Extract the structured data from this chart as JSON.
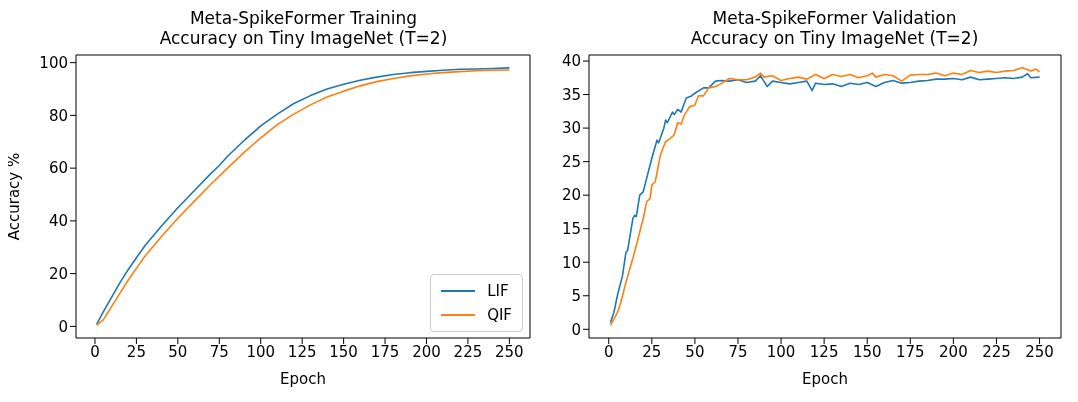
{
  "chart_data": [
    {
      "type": "line",
      "title": "Meta-SpikeFormer Training\nAccuracy on Tiny ImageNet (T=2)",
      "xlabel": "Epoch",
      "ylabel": "Accuracy %",
      "xlim": [
        -11.45,
        262.45
      ],
      "ylim": [
        -4.4,
        102.9
      ],
      "xticks": [
        0,
        25,
        50,
        75,
        100,
        125,
        150,
        175,
        200,
        225,
        250
      ],
      "yticks": [
        0,
        20,
        40,
        60,
        80,
        100
      ],
      "grid": false,
      "legend": "bottom right",
      "marker": "none",
      "line_style": "solid",
      "series": [
        {
          "name": "LIF",
          "color": "#1f77b4",
          "x": [
            1,
            5,
            10,
            15,
            20,
            25,
            30,
            40,
            50,
            60,
            70,
            75,
            80,
            90,
            100,
            110,
            120,
            130,
            140,
            150,
            160,
            170,
            180,
            190,
            200,
            210,
            220,
            230,
            240,
            250
          ],
          "values": [
            0.8,
            5.5,
            11,
            16.5,
            21.5,
            26,
            30.5,
            38,
            45,
            51.5,
            58,
            61,
            64.5,
            70.5,
            76,
            80.5,
            84.5,
            87.5,
            90,
            91.8,
            93.3,
            94.5,
            95.5,
            96.2,
            96.7,
            97.1,
            97.5,
            97.6,
            97.8,
            98
          ]
        },
        {
          "name": "QIF",
          "color": "#ff7f0e",
          "x": [
            1,
            5,
            10,
            15,
            20,
            25,
            30,
            40,
            50,
            60,
            70,
            80,
            90,
            100,
            110,
            120,
            130,
            140,
            150,
            160,
            170,
            180,
            190,
            200,
            210,
            220,
            230,
            240,
            250
          ],
          "values": [
            0.5,
            2.5,
            7.5,
            12.5,
            17.5,
            22,
            26.5,
            34,
            41,
            47.5,
            54,
            60,
            66,
            71.5,
            76.5,
            80.5,
            84,
            87,
            89.2,
            91.2,
            92.8,
            94,
            95,
            95.7,
            96.2,
            96.6,
            96.9,
            97.1,
            97.2
          ]
        }
      ]
    },
    {
      "type": "line",
      "title": "Meta-SpikeFormer Validation\nAccuracy on Tiny ImageNet (T=2)",
      "xlabel": "Epoch",
      "xlim": [
        -11.45,
        262.45
      ],
      "ylim": [
        -1.3,
        40.9
      ],
      "xticks": [
        0,
        25,
        50,
        75,
        100,
        125,
        150,
        175,
        200,
        225,
        250
      ],
      "yticks": [
        0,
        5,
        10,
        15,
        20,
        25,
        30,
        35,
        40
      ],
      "grid": false,
      "marker": "none",
      "line_style": "solid",
      "series": [
        {
          "color": "#1f77b4",
          "x": [
            1,
            3,
            5,
            8,
            10,
            11,
            14,
            15,
            16,
            18,
            20,
            22,
            25,
            28,
            29,
            32,
            33,
            34,
            37,
            38,
            40,
            42,
            45,
            48,
            50,
            55,
            58,
            62,
            65,
            70,
            75,
            80,
            85,
            88,
            90,
            92,
            95,
            100,
            105,
            110,
            115,
            118,
            120,
            125,
            130,
            135,
            140,
            145,
            150,
            155,
            160,
            165,
            170,
            175,
            180,
            185,
            190,
            195,
            200,
            205,
            210,
            215,
            220,
            225,
            230,
            235,
            240,
            243,
            245,
            250
          ],
          "values": [
            1,
            2.5,
            5,
            8,
            11.5,
            11.8,
            16.5,
            17,
            16.8,
            20,
            20.5,
            22.5,
            25.5,
            28.2,
            27.8,
            30,
            31.2,
            30.8,
            32.4,
            32,
            32.8,
            32.4,
            34.5,
            34.8,
            35.2,
            36,
            36,
            37,
            37.1,
            37,
            37.2,
            36.8,
            37,
            37.8,
            37,
            36.2,
            37,
            36.8,
            36.6,
            36.8,
            37,
            35.6,
            36.7,
            36.5,
            36.6,
            36.2,
            36.7,
            36.5,
            36.8,
            36.2,
            36.8,
            37.1,
            36.7,
            36.8,
            37,
            37.1,
            37.3,
            37.3,
            37.4,
            37.2,
            37.6,
            37.2,
            37.3,
            37.4,
            37.5,
            37.4,
            37.6,
            38.1,
            37.5,
            37.6
          ]
        },
        {
          "color": "#ff7f0e",
          "x": [
            1,
            3,
            5,
            7,
            10,
            15,
            18,
            20,
            22,
            24,
            25,
            27,
            30,
            33,
            35,
            38,
            40,
            42,
            44,
            47,
            50,
            52,
            55,
            58,
            62,
            65,
            70,
            75,
            80,
            85,
            88,
            90,
            95,
            100,
            105,
            110,
            115,
            120,
            125,
            130,
            135,
            140,
            145,
            150,
            153,
            155,
            160,
            165,
            170,
            175,
            180,
            185,
            190,
            195,
            200,
            205,
            210,
            215,
            220,
            225,
            230,
            235,
            240,
            245,
            248,
            250
          ],
          "values": [
            0.6,
            1.5,
            2.5,
            4,
            7,
            11.5,
            14.5,
            16.5,
            19,
            19.5,
            21.5,
            22,
            26,
            28,
            28.3,
            29,
            30.8,
            30.6,
            32,
            33.2,
            33.4,
            34.8,
            34.8,
            36,
            36.2,
            36.6,
            37.4,
            37.2,
            37.2,
            37.6,
            38.2,
            37.6,
            37.8,
            37.1,
            37.4,
            37.6,
            37.3,
            38,
            37.4,
            38,
            37.7,
            38,
            37.5,
            37.8,
            38.2,
            37.6,
            38,
            37.8,
            37,
            37.9,
            38,
            38,
            38.2,
            37.8,
            38.2,
            38,
            38.6,
            38.3,
            38.5,
            38.3,
            38.5,
            38.6,
            39,
            38.5,
            38.8,
            38.4
          ]
        }
      ]
    }
  ]
}
